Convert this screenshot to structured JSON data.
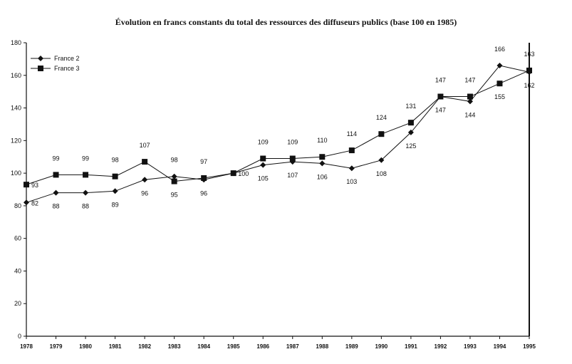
{
  "chart_data": {
    "type": "line",
    "title": "Évolution en francs constants du total des ressources des diffuseurs publics (base 100 en 1985)",
    "xlabel": "",
    "ylabel": "",
    "x": [
      "1978",
      "1979",
      "1980",
      "1981",
      "1982",
      "1983",
      "1984",
      "1985",
      "1986",
      "1987",
      "1988",
      "1989",
      "1990",
      "1991",
      "1992",
      "1993",
      "1994",
      "1995"
    ],
    "ylim": [
      0,
      180
    ],
    "yticks": [
      0,
      20,
      40,
      60,
      80,
      100,
      120,
      140,
      160,
      180
    ],
    "grid": false,
    "legend": "top-left",
    "series": [
      {
        "name": "France 2",
        "marker": "diamond",
        "values": [
          82,
          88,
          88,
          89,
          96,
          98,
          96,
          100,
          105,
          107,
          106,
          103,
          108,
          125,
          147,
          144,
          166,
          162
        ]
      },
      {
        "name": "France 3",
        "marker": "square",
        "values": [
          93,
          99,
          99,
          98,
          107,
          95,
          97,
          100,
          109,
          109,
          110,
          114,
          124,
          131,
          147,
          147,
          155,
          163
        ]
      }
    ]
  }
}
